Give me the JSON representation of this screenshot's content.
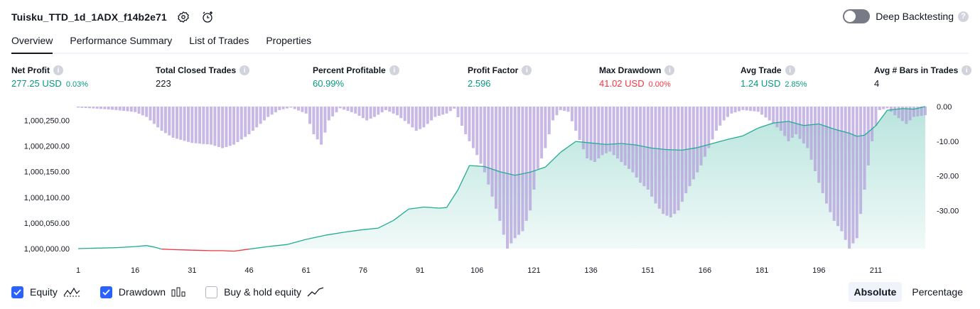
{
  "header": {
    "title": "Tuisku_TTD_1d_1ADX_f14b2e71"
  },
  "deep_backtesting": {
    "label": "Deep Backtesting",
    "enabled": false,
    "help": "?"
  },
  "tabs": [
    {
      "label": "Overview",
      "active": true
    },
    {
      "label": "Performance Summary"
    },
    {
      "label": "List of Trades"
    },
    {
      "label": "Properties"
    }
  ],
  "info_glyph": "i",
  "metrics": [
    {
      "label": "Net Profit",
      "value": "277.25 USD",
      "pct": "0.03%",
      "tone": "pos"
    },
    {
      "label": "Total Closed Trades",
      "value": "223",
      "pct": "",
      "tone": "plain"
    },
    {
      "label": "Percent Profitable",
      "value": "60.99%",
      "pct": "",
      "tone": "pos"
    },
    {
      "label": "Profit Factor",
      "value": "2.596",
      "pct": "",
      "tone": "pos"
    },
    {
      "label": "Max Drawdown",
      "value": "41.02 USD",
      "pct": "0.00%",
      "tone": "neg"
    },
    {
      "label": "Avg Trade",
      "value": "1.24 USD",
      "pct": "2.85%",
      "tone": "pos"
    },
    {
      "label": "Avg # Bars in Trades",
      "value": "4",
      "pct": "",
      "tone": "plain"
    }
  ],
  "chart_data": {
    "type": "area",
    "x_ticks": [
      "1",
      "16",
      "31",
      "46",
      "61",
      "76",
      "91",
      "106",
      "121",
      "136",
      "151",
      "166",
      "181",
      "196",
      "211"
    ],
    "y_ticks": [
      "1,000,000.00",
      "1,000,050.00",
      "1,000,100.00",
      "1,000,150.00",
      "1,000,200.00",
      "1,000,250.00"
    ],
    "y_right_ticks": [
      "0.00",
      "-10.00",
      "-20.00",
      "-30.00"
    ],
    "equity_ylim": [
      1000000,
      1000277
    ],
    "drawdown_ylim": [
      -41.02,
      0
    ],
    "equity_color": "#22ab94",
    "equity_negative_color": "#f23645",
    "drawdown_color": "#b39ddb",
    "series": [
      {
        "name": "Equity",
        "points": [
          [
            1,
            1000000
          ],
          [
            6,
            1000001
          ],
          [
            11,
            1000002
          ],
          [
            16,
            1000004
          ],
          [
            19,
            1000006
          ],
          [
            21,
            1000003
          ],
          [
            23,
            999999
          ],
          [
            26,
            999998
          ],
          [
            31,
            999997
          ],
          [
            36,
            999996
          ],
          [
            39,
            999996
          ],
          [
            42,
            999995
          ],
          [
            46,
            999999
          ],
          [
            51,
            1000004
          ],
          [
            56,
            1000008
          ],
          [
            61,
            1000018
          ],
          [
            66,
            1000026
          ],
          [
            71,
            1000032
          ],
          [
            76,
            1000037
          ],
          [
            80,
            1000040
          ],
          [
            84,
            1000055
          ],
          [
            88,
            1000077
          ],
          [
            92,
            1000081
          ],
          [
            96,
            1000079
          ],
          [
            98,
            1000080
          ],
          [
            101,
            1000115
          ],
          [
            104,
            1000162
          ],
          [
            108,
            1000160
          ],
          [
            112,
            1000150
          ],
          [
            116,
            1000143
          ],
          [
            120,
            1000149
          ],
          [
            124,
            1000159
          ],
          [
            128,
            1000188
          ],
          [
            132,
            1000209
          ],
          [
            136,
            1000206
          ],
          [
            140,
            1000203
          ],
          [
            144,
            1000205
          ],
          [
            148,
            1000202
          ],
          [
            152,
            1000196
          ],
          [
            156,
            1000193
          ],
          [
            160,
            1000192
          ],
          [
            164,
            1000197
          ],
          [
            168,
            1000205
          ],
          [
            172,
            1000213
          ],
          [
            176,
            1000220
          ],
          [
            180,
            1000235
          ],
          [
            184,
            1000245
          ],
          [
            188,
            1000248
          ],
          [
            192,
            1000240
          ],
          [
            196,
            1000243
          ],
          [
            200,
            1000233
          ],
          [
            204,
            1000225
          ],
          [
            206,
            1000219
          ],
          [
            208,
            1000221
          ],
          [
            211,
            1000240
          ],
          [
            214,
            1000270
          ],
          [
            218,
            1000273
          ],
          [
            221,
            1000272
          ],
          [
            224,
            1000277
          ]
        ]
      },
      {
        "name": "Drawdown",
        "points": [
          [
            1,
            -0.3
          ],
          [
            6,
            -0.6
          ],
          [
            11,
            -1.0
          ],
          [
            16,
            -1.6
          ],
          [
            19,
            -3.0
          ],
          [
            21,
            -5.0
          ],
          [
            23,
            -7.0
          ],
          [
            26,
            -9.0
          ],
          [
            31,
            -10.5
          ],
          [
            36,
            -11.0
          ],
          [
            39,
            -12.0
          ],
          [
            42,
            -11.0
          ],
          [
            46,
            -8.0
          ],
          [
            48,
            -6.0
          ],
          [
            51,
            -3.0
          ],
          [
            54,
            -1.0
          ],
          [
            57,
            -0.3
          ],
          [
            61,
            -2.0
          ],
          [
            63,
            -8.0
          ],
          [
            65,
            -11.0
          ],
          [
            67,
            -4.0
          ],
          [
            70,
            -0.5
          ],
          [
            74,
            -2.0
          ],
          [
            77,
            -4.0
          ],
          [
            79,
            -3.0
          ],
          [
            82,
            -1.0
          ],
          [
            85,
            -2.5
          ],
          [
            88,
            -5.0
          ],
          [
            90,
            -7.0
          ],
          [
            92,
            -6.0
          ],
          [
            95,
            -3.0
          ],
          [
            98,
            -2.0
          ],
          [
            100,
            -0.6
          ],
          [
            103,
            -8.0
          ],
          [
            106,
            -14.0
          ],
          [
            108,
            -19.0
          ],
          [
            110,
            -26.0
          ],
          [
            112,
            -33.0
          ],
          [
            114,
            -41.0
          ],
          [
            116,
            -38.0
          ],
          [
            118,
            -36.0
          ],
          [
            120,
            -30.0
          ],
          [
            122,
            -18.0
          ],
          [
            124,
            -12.0
          ],
          [
            126,
            -4.0
          ],
          [
            128,
            -1.0
          ],
          [
            130,
            -1.5
          ],
          [
            132,
            -7.0
          ],
          [
            135,
            -15.0
          ],
          [
            137,
            -16.0
          ],
          [
            139,
            -14.0
          ],
          [
            141,
            -13.0
          ],
          [
            143,
            -15.0
          ],
          [
            145,
            -17.0
          ],
          [
            147,
            -19.0
          ],
          [
            149,
            -22.0
          ],
          [
            151,
            -24.0
          ],
          [
            153,
            -28.0
          ],
          [
            155,
            -31.0
          ],
          [
            157,
            -32.0
          ],
          [
            159,
            -30.0
          ],
          [
            161,
            -25.0
          ],
          [
            163,
            -21.0
          ],
          [
            165,
            -17.0
          ],
          [
            167,
            -12.0
          ],
          [
            169,
            -7.0
          ],
          [
            171,
            -4.0
          ],
          [
            173,
            -2.0
          ],
          [
            176,
            -1.0
          ],
          [
            180,
            -1.5
          ],
          [
            183,
            -4.0
          ],
          [
            186,
            -7.0
          ],
          [
            188,
            -10.0
          ],
          [
            190,
            -8.0
          ],
          [
            193,
            -12.0
          ],
          [
            196,
            -22.0
          ],
          [
            198,
            -28.0
          ],
          [
            200,
            -33.0
          ],
          [
            202,
            -36.0
          ],
          [
            204,
            -41.0
          ],
          [
            206,
            -38.0
          ],
          [
            208,
            -24.0
          ],
          [
            210,
            -10.0
          ],
          [
            212,
            -1.0
          ],
          [
            214,
            -0.5
          ],
          [
            216,
            -2.5
          ],
          [
            219,
            -5.0
          ],
          [
            221,
            -3.0
          ],
          [
            224,
            -2.5
          ]
        ]
      }
    ]
  },
  "legend": [
    {
      "label": "Equity",
      "checked": true,
      "icon": "equity-icon"
    },
    {
      "label": "Drawdown",
      "checked": true,
      "icon": "drawdown-icon"
    },
    {
      "label": "Buy & hold equity",
      "checked": false,
      "icon": "buy-hold-icon"
    }
  ],
  "modes": [
    {
      "label": "Absolute",
      "active": true
    },
    {
      "label": "Percentage",
      "active": false
    }
  ]
}
